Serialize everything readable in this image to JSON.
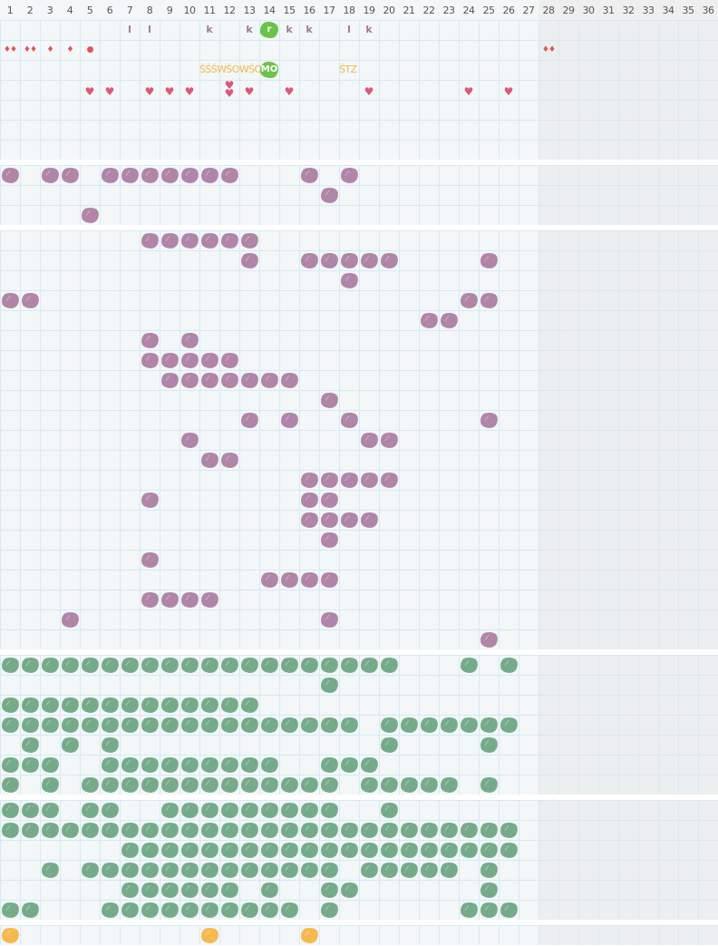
{
  "header": {
    "columns": [
      "1",
      "2",
      "3",
      "4",
      "5",
      "6",
      "7",
      "8",
      "9",
      "10",
      "11",
      "12",
      "13",
      "14",
      "15",
      "16",
      "17",
      "18",
      "19",
      "20",
      "21",
      "22",
      "23",
      "24",
      "25",
      "26",
      "27",
      "28",
      "29",
      "30",
      "31",
      "32",
      "33",
      "34",
      "35",
      "36"
    ]
  },
  "colors": {
    "grid_bg": "#f3f7f8",
    "grid_line": "#d6eaf3",
    "inactive_bg": "#ececec",
    "purple": "#b085a8",
    "green": "#76ab8a",
    "orange": "#f6b94f",
    "bright_green": "#6cc24a",
    "heart": "#e0567a",
    "drop": "#e05555"
  },
  "active_columns": 27,
  "top_section": {
    "rows": 7,
    "marks": [
      {
        "row": 1,
        "col": 7,
        "type": "letter",
        "text": "l"
      },
      {
        "row": 1,
        "col": 8,
        "type": "letter",
        "text": "l"
      },
      {
        "row": 1,
        "col": 11,
        "type": "letter",
        "text": "k"
      },
      {
        "row": 1,
        "col": 13,
        "type": "letter",
        "text": "k"
      },
      {
        "row": 1,
        "col": 14,
        "type": "green-badge",
        "text": "r"
      },
      {
        "row": 1,
        "col": 15,
        "type": "letter",
        "text": "k"
      },
      {
        "row": 1,
        "col": 16,
        "type": "letter",
        "text": "k"
      },
      {
        "row": 1,
        "col": 18,
        "type": "letter",
        "text": "l"
      },
      {
        "row": 1,
        "col": 19,
        "type": "letter",
        "text": "k"
      },
      {
        "row": 2,
        "col": 1,
        "type": "drop",
        "text": "♦♦",
        "icon": "drop-icon"
      },
      {
        "row": 2,
        "col": 2,
        "type": "drop",
        "text": "♦♦",
        "icon": "drop-icon"
      },
      {
        "row": 2,
        "col": 3,
        "type": "drop",
        "text": "♦",
        "icon": "drop-icon"
      },
      {
        "row": 2,
        "col": 4,
        "type": "drop",
        "text": "♦",
        "icon": "drop-icon"
      },
      {
        "row": 2,
        "col": 5,
        "type": "drop",
        "text": "●",
        "icon": "dot-icon"
      },
      {
        "row": 2,
        "col": 28,
        "type": "drop",
        "text": "♦♦",
        "icon": "drop-icon"
      },
      {
        "row": 3,
        "col": 11,
        "type": "orange-text",
        "text": "ŚŚŚWŚOWŚO"
      },
      {
        "row": 3,
        "col": 14,
        "type": "green-badge",
        "text": "MO"
      },
      {
        "row": 3,
        "col": 18,
        "type": "orange-text",
        "text": "ŚTZ"
      },
      {
        "row": 4,
        "col": 5,
        "type": "heart",
        "count": 1
      },
      {
        "row": 4,
        "col": 6,
        "type": "heart",
        "count": 1
      },
      {
        "row": 4,
        "col": 8,
        "type": "heart",
        "count": 1
      },
      {
        "row": 4,
        "col": 9,
        "type": "heart",
        "count": 1
      },
      {
        "row": 4,
        "col": 10,
        "type": "heart",
        "count": 1
      },
      {
        "row": 4,
        "col": 12,
        "type": "heart",
        "count": 2
      },
      {
        "row": 4,
        "col": 13,
        "type": "heart",
        "count": 1
      },
      {
        "row": 4,
        "col": 15,
        "type": "heart",
        "count": 1
      },
      {
        "row": 4,
        "col": 19,
        "type": "heart",
        "count": 1
      },
      {
        "row": 4,
        "col": 24,
        "type": "heart",
        "count": 1
      },
      {
        "row": 4,
        "col": 26,
        "type": "heart",
        "count": 1
      }
    ]
  },
  "blob_sections": [
    {
      "color": "purple",
      "rows": [
        [
          1,
          3,
          4,
          6,
          7,
          8,
          9,
          10,
          11,
          12,
          16,
          18
        ],
        [
          17
        ],
        [
          5
        ]
      ]
    },
    {
      "color": "purple",
      "rows": [
        [
          8,
          9,
          10,
          11,
          12,
          13
        ],
        [
          13,
          16,
          17,
          18,
          19,
          20,
          25
        ],
        [
          18
        ],
        [
          1,
          2,
          24,
          25
        ],
        [
          22,
          23
        ],
        [
          8,
          10
        ],
        [
          8,
          9,
          10,
          11,
          12
        ],
        [
          9,
          10,
          11,
          12,
          13,
          14,
          15
        ],
        [
          17
        ],
        [
          13,
          15,
          18,
          25
        ],
        [
          10,
          19,
          20
        ],
        [
          11,
          12
        ],
        [
          16,
          17,
          18,
          19,
          20
        ],
        [
          8,
          16,
          17
        ],
        [
          16,
          17,
          18,
          19
        ],
        [
          17
        ],
        [
          8
        ],
        [
          14,
          15,
          16,
          17
        ],
        [
          8,
          9,
          10,
          11
        ],
        [
          4,
          17
        ],
        [
          25
        ]
      ]
    },
    {
      "color": "green",
      "rows": [
        [
          1,
          2,
          3,
          4,
          5,
          6,
          7,
          8,
          9,
          10,
          11,
          12,
          13,
          14,
          15,
          16,
          17,
          18,
          19,
          20,
          24,
          26
        ],
        [
          17
        ],
        [
          1,
          2,
          3,
          4,
          5,
          6,
          7,
          8,
          9,
          10,
          11,
          12,
          13
        ],
        [
          1,
          2,
          3,
          4,
          5,
          6,
          7,
          8,
          9,
          10,
          11,
          12,
          13,
          14,
          15,
          16,
          17,
          18,
          20,
          21,
          22,
          23,
          24,
          25,
          26
        ],
        [
          2,
          4,
          6,
          20,
          25
        ],
        [
          1,
          2,
          3,
          6,
          7,
          8,
          9,
          10,
          11,
          12,
          13,
          14,
          17,
          18,
          19
        ],
        [
          1,
          3,
          5,
          6,
          7,
          8,
          9,
          10,
          11,
          12,
          13,
          14,
          15,
          16,
          17,
          19,
          20,
          21,
          22,
          23,
          25
        ]
      ]
    },
    {
      "color": "green",
      "rows": [
        [
          1,
          2,
          3,
          5,
          6,
          9,
          10,
          11,
          12,
          13,
          14,
          15,
          16,
          17,
          20
        ],
        [
          1,
          2,
          3,
          4,
          5,
          6,
          7,
          8,
          9,
          10,
          11,
          12,
          13,
          14,
          15,
          16,
          17,
          18,
          19,
          20,
          21,
          22,
          23,
          24,
          25,
          26
        ],
        [
          7,
          8,
          9,
          10,
          11,
          12,
          13,
          14,
          15,
          16,
          17,
          18,
          19,
          20,
          21,
          22,
          23,
          24,
          25,
          26
        ],
        [
          3,
          5,
          6,
          7,
          8,
          9,
          10,
          11,
          12,
          13,
          14,
          15,
          16,
          17,
          19,
          20,
          21,
          22,
          23,
          25
        ],
        [
          7,
          8,
          9,
          10,
          11,
          12,
          14,
          17,
          18,
          25
        ],
        [
          1,
          2,
          6,
          7,
          8,
          9,
          10,
          11,
          12,
          13,
          14,
          15,
          17,
          24,
          25,
          26
        ]
      ]
    },
    {
      "color": "orange",
      "rows": [
        [
          1,
          11,
          16
        ]
      ]
    }
  ]
}
